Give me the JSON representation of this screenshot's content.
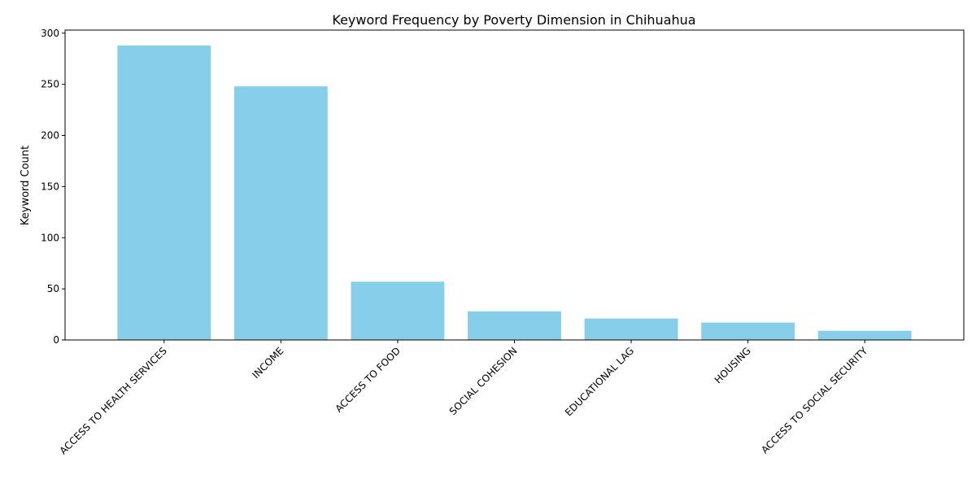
{
  "chart_data": {
    "type": "bar",
    "title": "Keyword Frequency by Poverty Dimension in Chihuahua",
    "xlabel": "",
    "ylabel": "Keyword Count",
    "categories": [
      "ACCESS TO HEALTH SERVICES",
      "INCOME",
      "ACCESS TO FOOD",
      "SOCIAL COHESION",
      "EDUCATIONAL LAG",
      "HOUSING",
      "ACCESS TO SOCIAL SECURITY"
    ],
    "values": [
      288,
      248,
      57,
      28,
      21,
      17,
      9
    ],
    "ylim": [
      0,
      303
    ],
    "yticks": [
      0,
      50,
      100,
      150,
      200,
      250,
      300
    ],
    "bar_color": "#87ceeb",
    "grid": false,
    "legend": "none"
  }
}
